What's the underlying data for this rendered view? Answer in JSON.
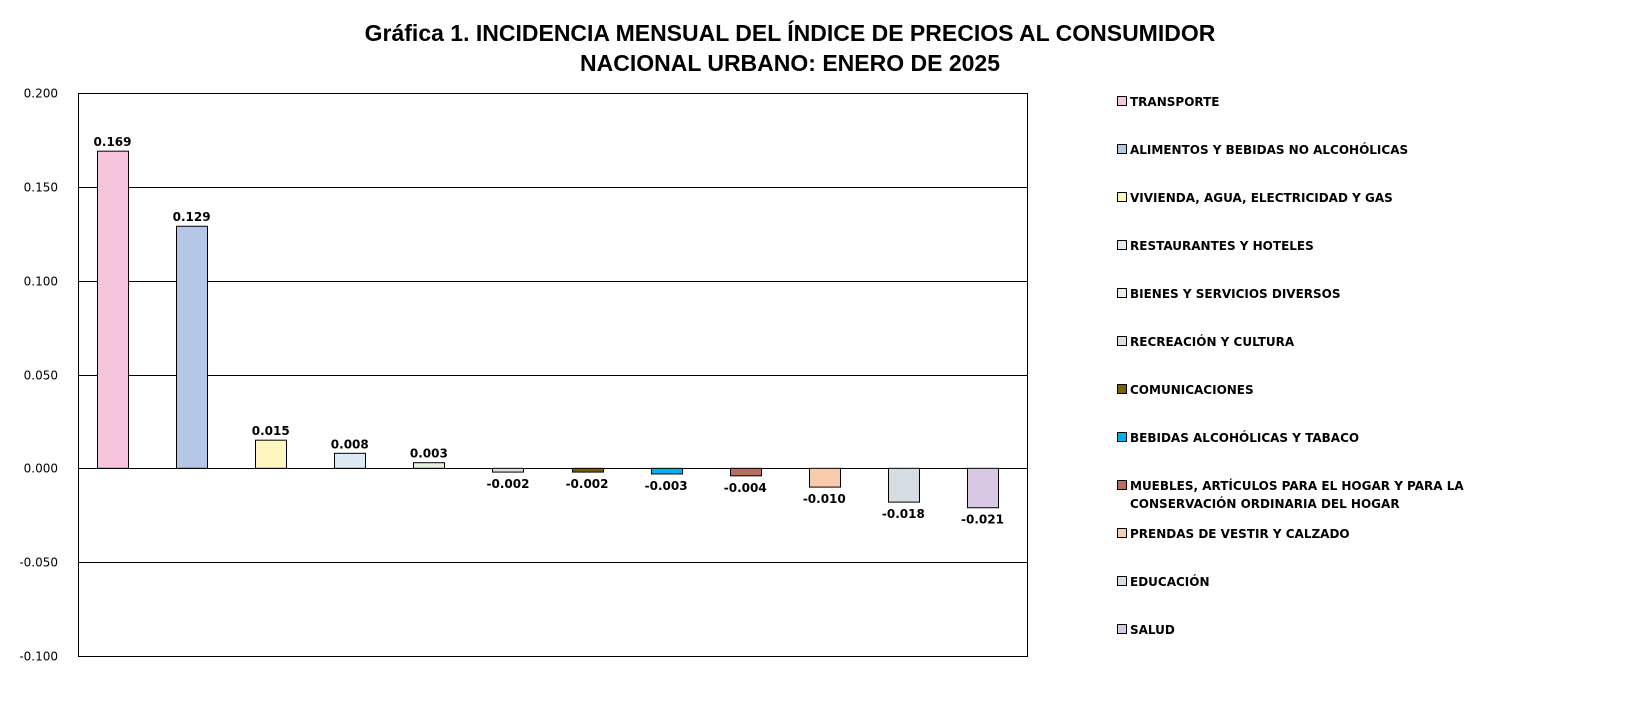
{
  "chart_data": {
    "type": "bar",
    "title": [
      "Gráfica 1.  INCIDENCIA MENSUAL  DEL ÍNDICE DE PRECIOS AL CONSUMIDOR",
      "NACIONAL URBANO: ENERO DE 2025"
    ],
    "xlabel": "",
    "ylabel": "",
    "ylim": [
      -0.1,
      0.2
    ],
    "yticks": [
      0.2,
      0.15,
      0.1,
      0.05,
      0.0,
      -0.05,
      -0.1
    ],
    "ytick_labels": [
      "0.200",
      "0.150",
      "0.100",
      "0.050",
      "0.000",
      "-0.050",
      "-0.100"
    ],
    "grid": true,
    "legend_position": "right",
    "categories": [
      "TRANSPORTE",
      "ALIMENTOS Y BEBIDAS NO ALCOHÓLICAS",
      "VIVIENDA, AGUA, ELECTRICIDAD Y GAS",
      "RESTAURANTES Y HOTELES",
      "BIENES Y SERVICIOS DIVERSOS",
      "RECREACIÓN Y CULTURA",
      "COMUNICACIONES",
      "BEBIDAS ALCOHÓLICAS Y TABACO",
      "MUEBLES, ARTÍCULOS PARA EL HOGAR Y PARA LA|CONSERVACIÓN ORDINARIA DEL HOGAR",
      "PRENDAS DE VESTIR Y CALZADO",
      "EDUCACIÓN",
      "SALUD"
    ],
    "values": [
      0.169,
      0.129,
      0.015,
      0.008,
      0.003,
      -0.002,
      -0.002,
      -0.003,
      -0.004,
      -0.01,
      -0.018,
      -0.021
    ],
    "value_labels": [
      "0.169",
      "0.129",
      "0.015",
      "0.008",
      "0.003",
      "-0.002",
      "-0.002",
      "-0.003",
      "-0.004",
      "-0.010",
      "-0.018",
      "-0.021"
    ],
    "colors": [
      "#f7c4dd",
      "#b4c7e7",
      "#fff5bf",
      "#dde8f5",
      "#e6f0dc",
      "#dedede",
      "#7f6000",
      "#00b0f0",
      "#b86e5e",
      "#f8cbad",
      "#d6dce4",
      "#d9c8e3"
    ]
  }
}
